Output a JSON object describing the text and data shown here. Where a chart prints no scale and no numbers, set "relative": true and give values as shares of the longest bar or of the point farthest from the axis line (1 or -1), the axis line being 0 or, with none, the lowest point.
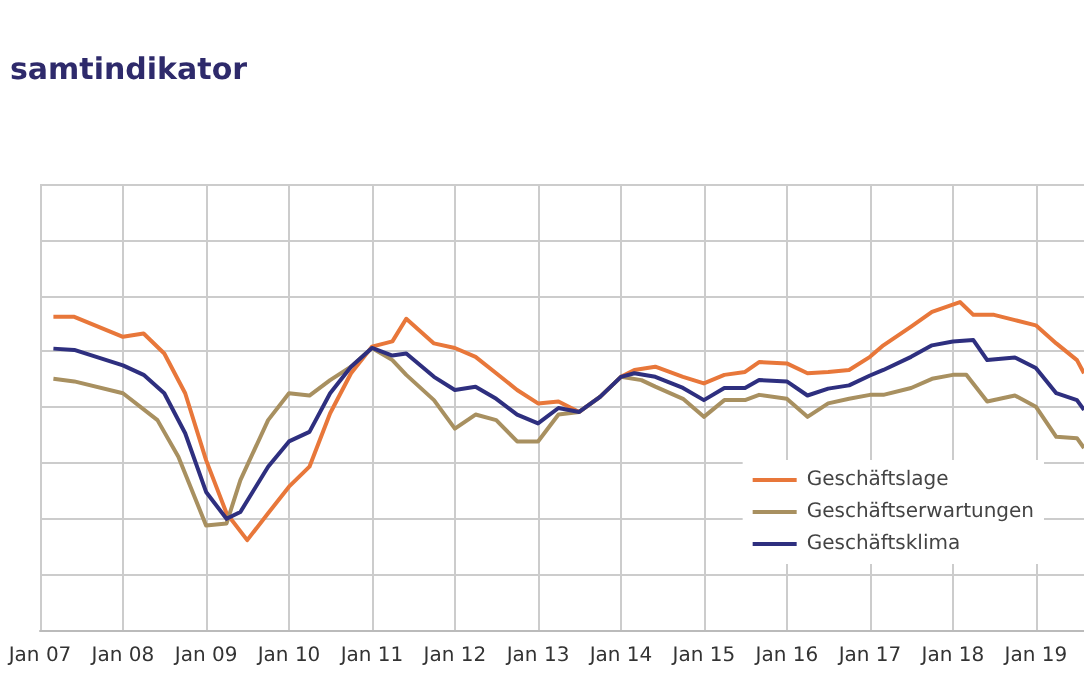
{
  "chart_data": {
    "type": "line",
    "title": "samtindikator",
    "relative": true,
    "grid": true,
    "legend": "bottom right",
    "marker": "none",
    "line_style": "solid",
    "xlim": [
      "2007-01",
      "2019-08"
    ],
    "xticks": [
      {
        "value": "2007-01",
        "label": "Jan 07"
      },
      {
        "value": "2008-01",
        "label": "Jan 08"
      },
      {
        "value": "2009-01",
        "label": "Jan 09"
      },
      {
        "value": "2010-01",
        "label": "Jan 10"
      },
      {
        "value": "2011-01",
        "label": "Jan 11"
      },
      {
        "value": "2012-01",
        "label": "Jan 12"
      },
      {
        "value": "2013-01",
        "label": "Jan 13"
      },
      {
        "value": "2014-01",
        "label": "Jan 14"
      },
      {
        "value": "2015-01",
        "label": "Jan 15"
      },
      {
        "value": "2016-01",
        "label": "Jan 16"
      },
      {
        "value": "2017-01",
        "label": "Jan 17"
      },
      {
        "value": "2018-01",
        "label": "Jan 18"
      },
      {
        "value": "2019-01",
        "label": "Jan 19"
      }
    ],
    "series": [
      {
        "name": "Geschäftslage",
        "color": "#e8773a",
        "x": [
          "2007-03",
          "2007-06",
          "2008-01",
          "2008-04",
          "2008-07",
          "2008-10",
          "2009-01",
          "2009-04",
          "2009-07",
          "2009-10",
          "2010-01",
          "2010-04",
          "2010-07",
          "2010-10",
          "2011-01",
          "2011-04",
          "2011-06",
          "2011-10",
          "2012-01",
          "2012-04",
          "2012-07",
          "2012-10",
          "2013-01",
          "2013-04",
          "2013-07",
          "2013-10",
          "2014-01",
          "2014-03",
          "2014-06",
          "2014-10",
          "2015-01",
          "2015-04",
          "2015-07",
          "2015-09",
          "2016-01",
          "2016-04",
          "2016-07",
          "2016-10",
          "2017-01",
          "2017-03",
          "2017-07",
          "2017-10",
          "2018-02",
          "2018-04",
          "2018-07",
          "2018-10",
          "2019-01",
          "2019-04",
          "2019-07",
          "2019-08"
        ],
        "values": [
          0.955,
          0.955,
          0.894,
          0.904,
          0.843,
          0.722,
          0.518,
          0.356,
          0.274,
          0.356,
          0.437,
          0.498,
          0.661,
          0.783,
          0.864,
          0.88,
          0.949,
          0.874,
          0.86,
          0.833,
          0.783,
          0.732,
          0.691,
          0.697,
          0.665,
          0.711,
          0.772,
          0.793,
          0.803,
          0.772,
          0.752,
          0.778,
          0.787,
          0.817,
          0.813,
          0.783,
          0.787,
          0.793,
          0.833,
          0.868,
          0.925,
          0.97,
          1.0,
          0.961,
          0.961,
          0.945,
          0.929,
          0.874,
          0.823,
          0.783
        ]
      },
      {
        "name": "Geschäftserwartungen",
        "color": "#a89060",
        "x": [
          "2007-03",
          "2007-06",
          "2008-01",
          "2008-06",
          "2008-09",
          "2009-01",
          "2009-04",
          "2009-06",
          "2009-10",
          "2010-01",
          "2010-04",
          "2010-07",
          "2010-10",
          "2011-01",
          "2011-04",
          "2011-06",
          "2011-10",
          "2012-01",
          "2012-04",
          "2012-07",
          "2012-10",
          "2013-01",
          "2013-04",
          "2013-07",
          "2013-10",
          "2014-01",
          "2014-04",
          "2014-06",
          "2014-10",
          "2015-01",
          "2015-04",
          "2015-07",
          "2015-09",
          "2016-01",
          "2016-04",
          "2016-07",
          "2016-10",
          "2017-01",
          "2017-03",
          "2017-07",
          "2017-10",
          "2018-01",
          "2018-03",
          "2018-06",
          "2018-10",
          "2019-01",
          "2019-04",
          "2019-07",
          "2019-08"
        ],
        "values": [
          0.766,
          0.758,
          0.722,
          0.64,
          0.528,
          0.319,
          0.325,
          0.457,
          0.64,
          0.722,
          0.715,
          0.762,
          0.803,
          0.86,
          0.823,
          0.778,
          0.701,
          0.614,
          0.657,
          0.64,
          0.575,
          0.575,
          0.657,
          0.665,
          0.711,
          0.772,
          0.762,
          0.742,
          0.705,
          0.65,
          0.701,
          0.701,
          0.717,
          0.705,
          0.65,
          0.691,
          0.705,
          0.717,
          0.717,
          0.738,
          0.766,
          0.778,
          0.778,
          0.697,
          0.715,
          0.681,
          0.589,
          0.585,
          0.555
        ]
      },
      {
        "name": "Geschäftsklima",
        "color": "#2e2f7f",
        "x": [
          "2007-03",
          "2007-06",
          "2008-01",
          "2008-04",
          "2008-07",
          "2008-10",
          "2009-01",
          "2009-04",
          "2009-06",
          "2009-10",
          "2010-01",
          "2010-04",
          "2010-07",
          "2010-10",
          "2011-01",
          "2011-04",
          "2011-06",
          "2011-10",
          "2012-01",
          "2012-04",
          "2012-07",
          "2012-10",
          "2013-01",
          "2013-04",
          "2013-07",
          "2013-10",
          "2014-01",
          "2014-03",
          "2014-06",
          "2014-10",
          "2015-01",
          "2015-04",
          "2015-07",
          "2015-09",
          "2016-01",
          "2016-04",
          "2016-07",
          "2016-10",
          "2017-01",
          "2017-03",
          "2017-07",
          "2017-10",
          "2018-01",
          "2018-04",
          "2018-06",
          "2018-10",
          "2019-01",
          "2019-04",
          "2019-07",
          "2019-08"
        ],
        "values": [
          0.858,
          0.854,
          0.807,
          0.778,
          0.722,
          0.6,
          0.421,
          0.339,
          0.36,
          0.498,
          0.575,
          0.604,
          0.722,
          0.803,
          0.86,
          0.837,
          0.843,
          0.772,
          0.732,
          0.742,
          0.705,
          0.657,
          0.63,
          0.677,
          0.665,
          0.711,
          0.772,
          0.783,
          0.772,
          0.738,
          0.701,
          0.738,
          0.738,
          0.762,
          0.758,
          0.715,
          0.736,
          0.746,
          0.776,
          0.793,
          0.833,
          0.868,
          0.88,
          0.884,
          0.823,
          0.831,
          0.799,
          0.722,
          0.701,
          0.671
        ]
      }
    ]
  }
}
